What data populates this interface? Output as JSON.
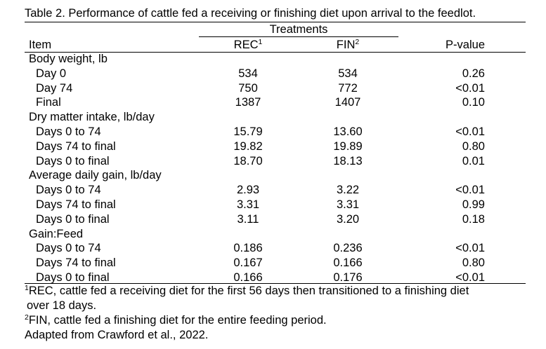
{
  "caption": "Table 2. Performance of cattle fed a receiving or finishing diet upon arrival to the feedlot.",
  "header": {
    "treatments": "Treatments",
    "item": "Item",
    "rec": "REC",
    "rec_sup": "1",
    "fin": "FIN",
    "fin_sup": "2",
    "pvalue": "P-value"
  },
  "sections": [
    {
      "title": "Body weight, lb",
      "rows": [
        {
          "label": "Day 0",
          "rec": "534",
          "fin": "534",
          "p": "0.26"
        },
        {
          "label": "Day 74",
          "rec": "750",
          "fin": "772",
          "p": "<0.01"
        },
        {
          "label": "Final",
          "rec": "1387",
          "fin": "1407",
          "p": "0.10"
        }
      ]
    },
    {
      "title": "Dry matter intake, lb/day",
      "rows": [
        {
          "label": "Days 0 to 74",
          "rec": "15.79",
          "fin": "13.60",
          "p": "<0.01"
        },
        {
          "label": "Days 74 to final",
          "rec": "19.82",
          "fin": "19.89",
          "p": "0.80"
        },
        {
          "label": "Days 0 to final",
          "rec": "18.70",
          "fin": "18.13",
          "p": "0.01"
        }
      ]
    },
    {
      "title": "Average daily gain, lb/day",
      "rows": [
        {
          "label": "Days 0 to 74",
          "rec": "2.93",
          "fin": "3.22",
          "p": "<0.01"
        },
        {
          "label": "Days 74 to final",
          "rec": "3.31",
          "fin": "3.31",
          "p": "0.99"
        },
        {
          "label": "Days 0 to final",
          "rec": "3.11",
          "fin": "3.20",
          "p": "0.18"
        }
      ]
    },
    {
      "title": "Gain:Feed",
      "rows": [
        {
          "label": "Days 0 to 74",
          "rec": "0.186",
          "fin": "0.236",
          "p": "<0.01"
        },
        {
          "label": "Days 74 to final",
          "rec": "0.167",
          "fin": "0.166",
          "p": "0.80"
        },
        {
          "label": "Days 0 to final",
          "rec": "0.166",
          "fin": "0.176",
          "p": "<0.01"
        }
      ]
    }
  ],
  "footnotes": {
    "fn1_mark": "1",
    "fn1_line1": "REC, cattle fed a receiving diet for the first 56 days then transitioned to a finishing diet",
    "fn1_line2": "over 18 days.",
    "fn2_mark": "2",
    "fn2": "FIN, cattle fed a finishing diet for the entire feeding period.",
    "source": "Adapted from Crawford et al., 2022."
  }
}
